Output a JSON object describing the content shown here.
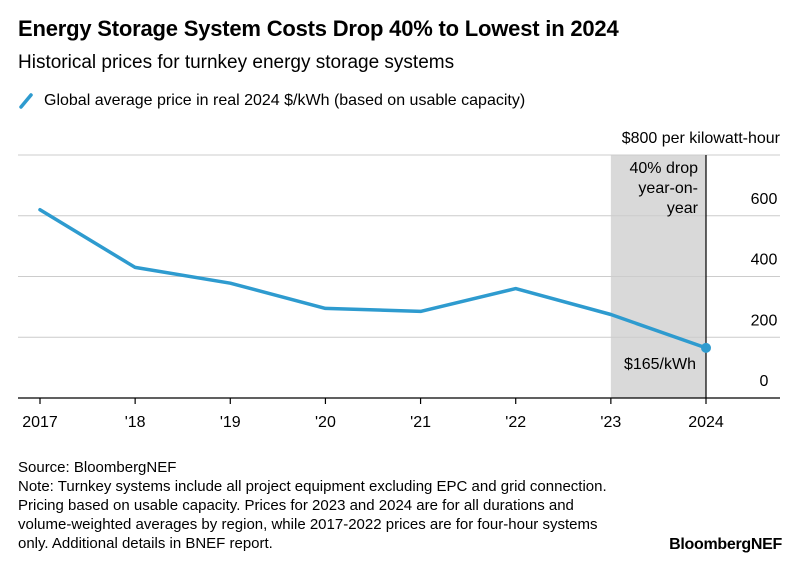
{
  "header": {
    "title": "Energy Storage System Costs Drop 40% to Lowest in 2024",
    "subtitle": "Historical prices for turnkey energy storage systems"
  },
  "legend": {
    "label": "Global average price in real 2024 $/kWh (based on usable capacity)"
  },
  "colors": {
    "series": "#2e9bcf",
    "shade": "#d9d9d9",
    "grid": "#cccccc"
  },
  "chart_data": {
    "type": "line",
    "title": "Energy Storage System Costs Drop 40% to Lowest in 2024",
    "subtitle": "Historical prices for turnkey energy storage systems",
    "x": [
      "2017",
      "'18",
      "'19",
      "'20",
      "'21",
      "'22",
      "'23",
      "2024"
    ],
    "series": [
      {
        "name": "Global average price in real 2024 $/kWh (based on usable capacity)",
        "values": [
          620,
          430,
          378,
          295,
          285,
          360,
          275,
          165
        ]
      }
    ],
    "ylim": [
      0,
      800
    ],
    "yticks": [
      0,
      200,
      400,
      600,
      800
    ],
    "ytick_labels": [
      "0",
      "200",
      "400",
      "600",
      "$800 per kilowatt-hour"
    ],
    "y_axis_side": "right",
    "grid": true,
    "shaded_region": {
      "from": "'23",
      "to": "2024",
      "label": [
        "40% drop",
        "year-on-",
        "year"
      ]
    },
    "annotations": [
      {
        "x": "2024",
        "y": 165,
        "text": "$165/kWh"
      }
    ]
  },
  "footer": {
    "source": "Source: BloombergNEF",
    "note": "Note: Turnkey systems include all project equipment excluding EPC and grid connection. Pricing based on usable capacity. Prices for 2023 and 2024 are for all durations and volume-weighted averages by region, while 2017-2022 prices are for four-hour systems only. Additional details in BNEF report."
  },
  "brand": "BloombergNEF"
}
